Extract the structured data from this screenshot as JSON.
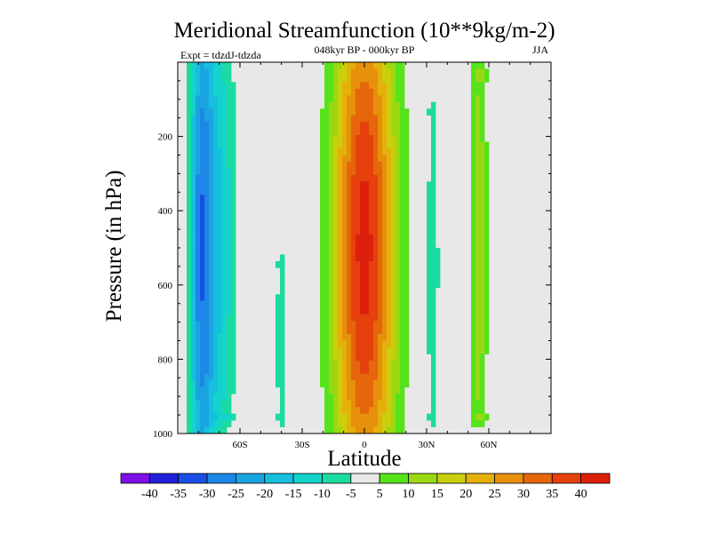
{
  "chart_data": {
    "type": "heatmap",
    "title": "Meridional Streamfunction (10**9kg/m-2)",
    "subtitle": "048kyr BP - 000kyr BP",
    "left_label": "Expt = tdzdJ-tdzda",
    "right_label": "JJA",
    "xlabel": "Latitude",
    "ylabel": "Pressure (in hPa)",
    "xlim": [
      -90,
      90
    ],
    "ylim": [
      1000,
      0
    ],
    "x_ticks": [
      {
        "value": -60,
        "label": "60S"
      },
      {
        "value": -30,
        "label": "30S"
      },
      {
        "value": 0,
        "label": "0"
      },
      {
        "value": 30,
        "label": "30N"
      },
      {
        "value": 60,
        "label": "60N"
      }
    ],
    "y_ticks": [
      {
        "value": 200,
        "label": "200"
      },
      {
        "value": 400,
        "label": "400"
      },
      {
        "value": 600,
        "label": "600"
      },
      {
        "value": 800,
        "label": "800"
      },
      {
        "value": 1000,
        "label": "1000"
      }
    ],
    "contour_levels": [
      -40,
      -35,
      -30,
      -25,
      -20,
      -15,
      -10,
      -5,
      5,
      10,
      15,
      20,
      25,
      30,
      35,
      40
    ],
    "colors": [
      "#7e0fe6",
      "#2121d9",
      "#1a4fe6",
      "#1d86e6",
      "#1ba5e0",
      "#16bfde",
      "#14d3cc",
      "#1cdba0",
      "#e8e8e8",
      "#57e31c",
      "#9ad812",
      "#c9cf0c",
      "#e6b00c",
      "#e6900c",
      "#e6660c",
      "#e6400c",
      "#dc200c"
    ],
    "background_color": "#e8e8e8",
    "features": [
      {
        "name": "southern-negative-cell",
        "lat_center": -78,
        "lat_half_width": 6,
        "p_top": 0,
        "p_bottom": 1000,
        "peak": -30
      },
      {
        "name": "southern-negative-fringe",
        "lat_center": -68,
        "lat_half_width": 6,
        "p_top": 0,
        "p_bottom": 950,
        "peak": -12
      },
      {
        "name": "midlat-negative-strip",
        "lat_center": -40,
        "lat_half_width": 3,
        "p_top": 550,
        "p_bottom": 950,
        "peak": -8
      },
      {
        "name": "tropical-positive-cell",
        "lat_center": 0,
        "lat_half_width": 14,
        "p_top": 0,
        "p_bottom": 1000,
        "peak": 42
      },
      {
        "name": "northern-positive-band",
        "lat_center": 55,
        "lat_half_width": 4,
        "p_top": 50,
        "p_bottom": 950,
        "peak": 14
      },
      {
        "name": "northern-negative-strip",
        "lat_center": 33,
        "lat_half_width": 3,
        "p_top": 150,
        "p_bottom": 950,
        "peak": -9
      }
    ]
  }
}
